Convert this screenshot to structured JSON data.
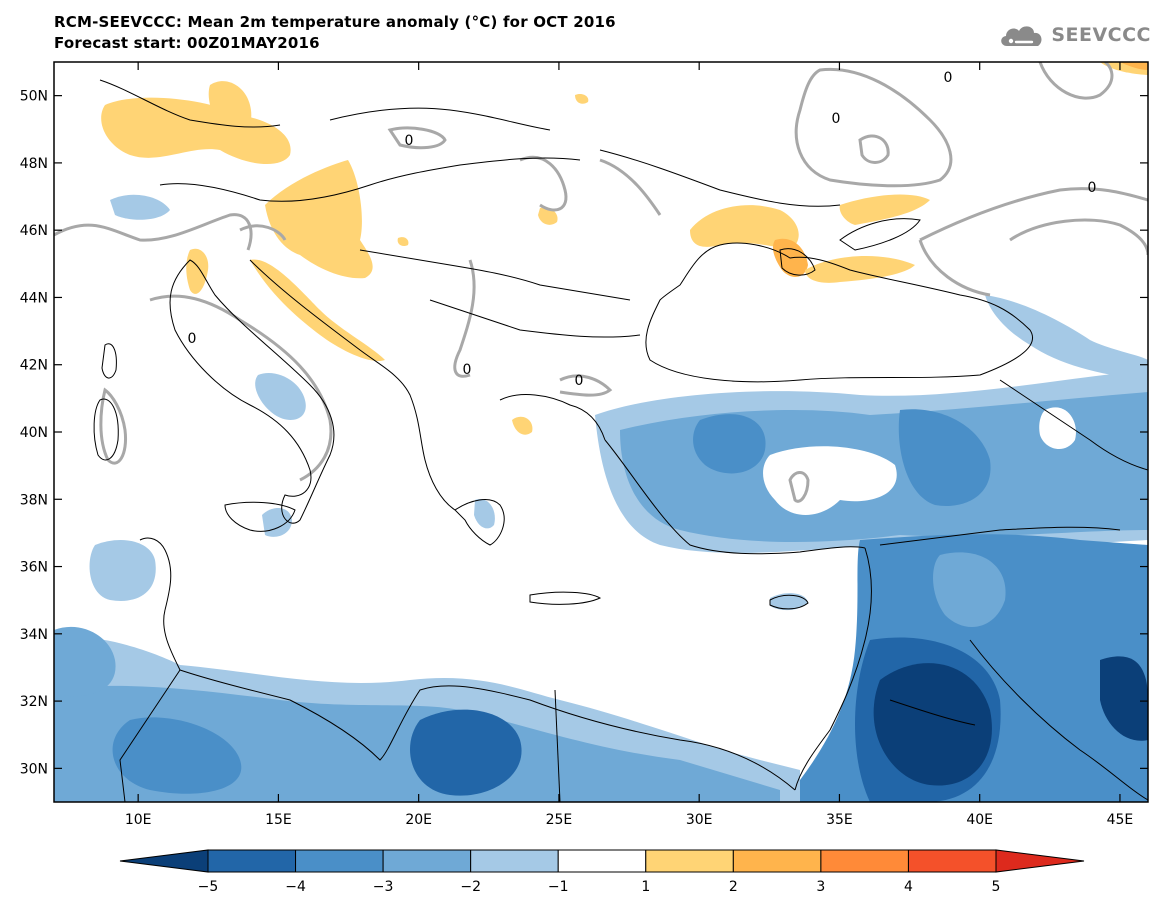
{
  "header": {
    "title": "RCM-SEEVCCC: Mean 2m temperature anomaly (°C) for OCT 2016",
    "subtitle": "Forecast start: 00Z01MAY2016"
  },
  "logo": {
    "text": "SEEVCCC",
    "icon": "cloud-icon"
  },
  "chart_data": {
    "type": "heatmap",
    "variable": "Mean 2m temperature anomaly",
    "unit": "°C",
    "x_axis": {
      "ticks": [
        {
          "value": 10,
          "label": "10E"
        },
        {
          "value": 15,
          "label": "15E"
        },
        {
          "value": 20,
          "label": "20E"
        },
        {
          "value": 25,
          "label": "25E"
        },
        {
          "value": 30,
          "label": "30E"
        },
        {
          "value": 35,
          "label": "35E"
        },
        {
          "value": 40,
          "label": "40E"
        },
        {
          "value": 45,
          "label": "45E"
        }
      ],
      "range": [
        7,
        46
      ]
    },
    "y_axis": {
      "ticks": [
        {
          "value": 30,
          "label": "30N"
        },
        {
          "value": 32,
          "label": "32N"
        },
        {
          "value": 34,
          "label": "34N"
        },
        {
          "value": 36,
          "label": "36N"
        },
        {
          "value": 38,
          "label": "38N"
        },
        {
          "value": 40,
          "label": "40N"
        },
        {
          "value": 42,
          "label": "42N"
        },
        {
          "value": 44,
          "label": "44N"
        },
        {
          "value": 46,
          "label": "46N"
        },
        {
          "value": 48,
          "label": "48N"
        },
        {
          "value": 50,
          "label": "50N"
        }
      ],
      "range": [
        29,
        51
      ]
    },
    "colorbar": {
      "levels": [
        "−5",
        "−4",
        "−3",
        "−2",
        "−1",
        "1",
        "2",
        "3",
        "4",
        "5"
      ],
      "colors": [
        "#0b3f78",
        "#2266a8",
        "#4a8fc8",
        "#6fa9d6",
        "#a5c9e6",
        "#ffffff",
        "#ffd475",
        "#ffb44c",
        "#ff8a38",
        "#f4512a",
        "#dd2a1d"
      ]
    },
    "contour_label": "0"
  }
}
